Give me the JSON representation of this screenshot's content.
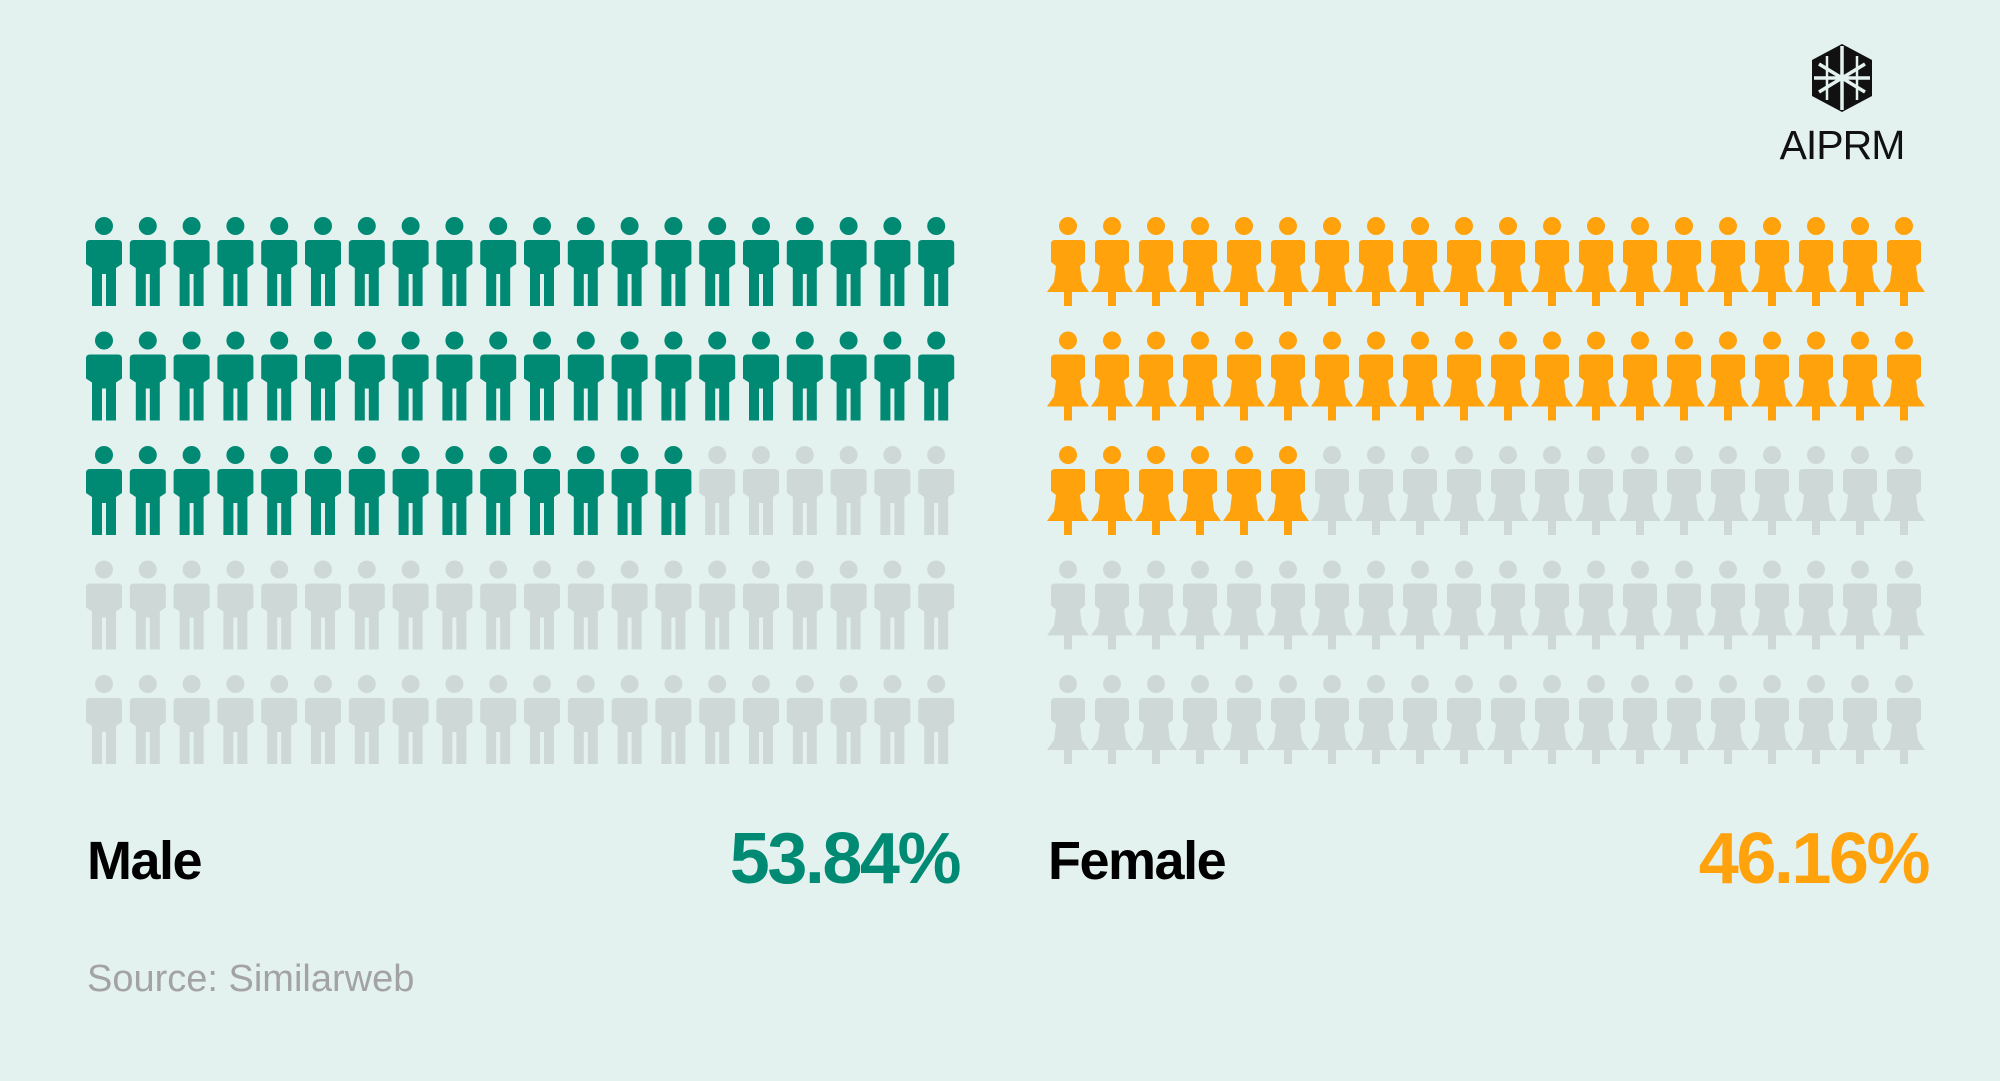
{
  "brand": {
    "name": "AIPRM"
  },
  "chart_data": {
    "type": "pictogram",
    "total_icons_per_panel": 100,
    "grid": {
      "rows": 5,
      "cols": 20
    },
    "series": [
      {
        "name": "Male",
        "value_label": "53.84%",
        "value": 53.84,
        "filled_icons": 54,
        "color": "#008a74",
        "icon": "male-figure"
      },
      {
        "name": "Female",
        "value_label": "46.16%",
        "value": 46.16,
        "filled_icons": 46,
        "color": "#ffa20c",
        "icon": "female-figure"
      }
    ],
    "empty_color": "#ced9d7"
  },
  "source": "Source: Similarweb"
}
